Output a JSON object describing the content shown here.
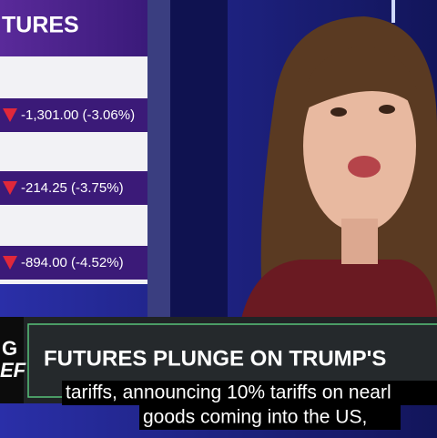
{
  "header": {
    "title": "TURES"
  },
  "rows": [
    "-1,301.00 (-3.06%)",
    "-214.25 (-3.75%)",
    "-894.00 (-4.52%)"
  ],
  "logo": [
    "G",
    "EF"
  ],
  "headline": "FUTURES PLUNGE ON TRUMP'S",
  "captions": [
    "tariffs, announcing 10% tariffs on nearl",
    "goods coming into the US,"
  ]
}
